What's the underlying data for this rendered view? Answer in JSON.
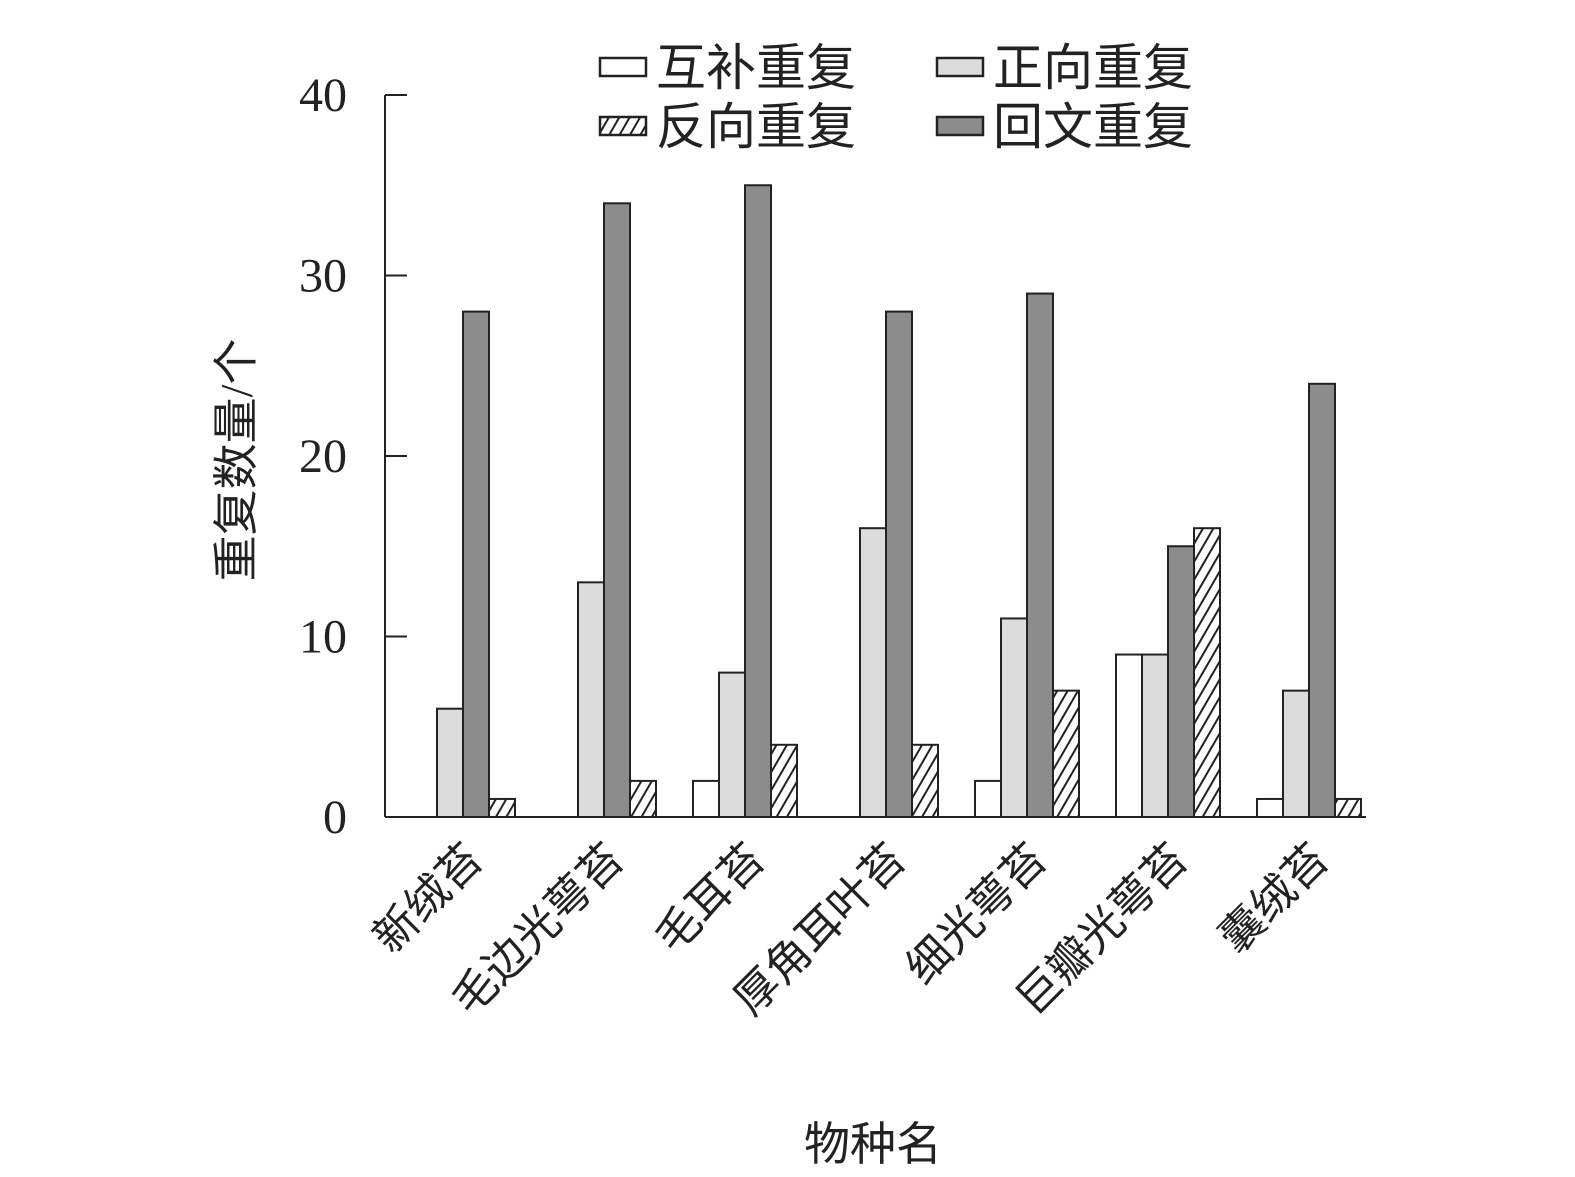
{
  "chart_data": {
    "type": "bar",
    "xlabel": "物种名",
    "ylabel": "重复数量/个",
    "ylim": [
      0,
      40
    ],
    "yticks": [
      "0",
      "10",
      "20",
      "30",
      "40"
    ],
    "grid": false,
    "legend_position": "top",
    "categories": [
      "新绒苔",
      "毛边光萼苔",
      "毛耳苔",
      "厚角耳叶苔",
      "细光萼苔",
      "巨瓣光萼苔",
      "囊绒苔"
    ],
    "series": [
      {
        "name": "互补重复",
        "fill": "#ffffff",
        "pattern": "none",
        "values": [
          0,
          0,
          2,
          0,
          2,
          9,
          1
        ]
      },
      {
        "name": "正向重复",
        "fill": "#dcdcdc",
        "pattern": "none",
        "values": [
          6,
          13,
          8,
          16,
          11,
          9,
          7
        ]
      },
      {
        "name": "回文重复",
        "fill": "#8c8c8c",
        "pattern": "none",
        "values": [
          28,
          34,
          35,
          28,
          29,
          15,
          24
        ]
      },
      {
        "name": "反向重复",
        "fill": "#ffffff",
        "pattern": "hatch",
        "values": [
          1,
          2,
          4,
          4,
          7,
          16,
          1
        ]
      }
    ],
    "legend_order": [
      0,
      1,
      3,
      2
    ]
  }
}
